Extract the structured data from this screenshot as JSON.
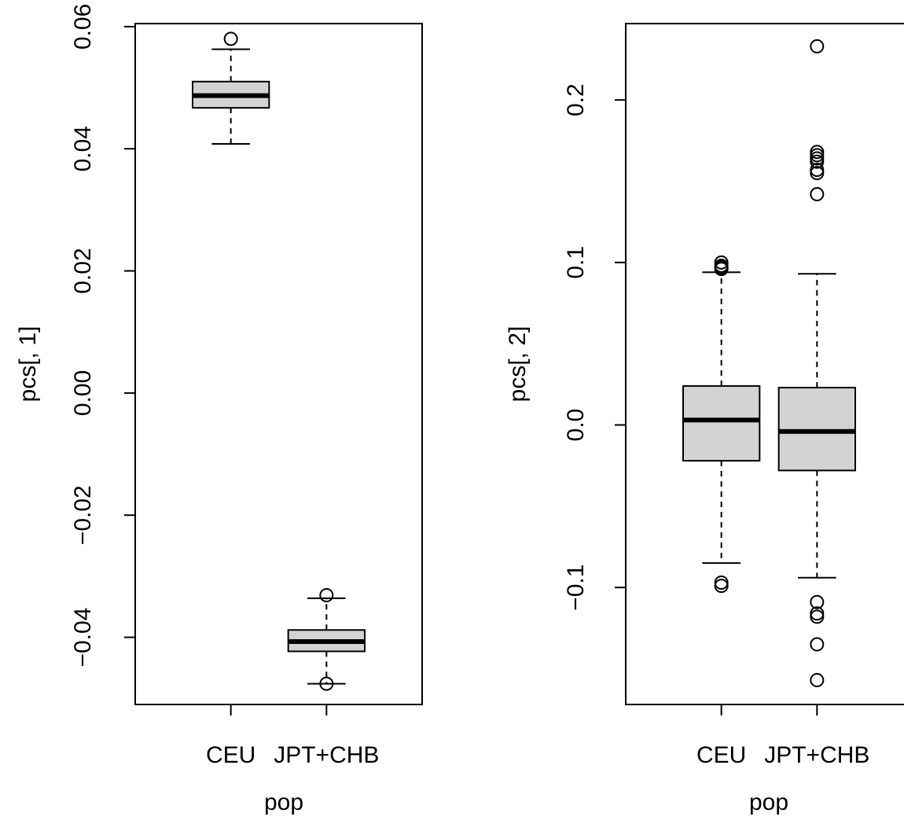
{
  "chart_data": [
    {
      "type": "boxplot",
      "xlabel": "pop",
      "ylabel": "pcs[, 1]",
      "ylim": [
        -0.051,
        0.0605
      ],
      "yticks": [
        -0.04,
        -0.02,
        0.0,
        0.02,
        0.04,
        0.06
      ],
      "ytick_labels": [
        "−0.04",
        "−0.02",
        "0.00",
        "0.02",
        "0.04",
        "0.06"
      ],
      "categories": [
        "CEU",
        "JPT+CHB"
      ],
      "boxes": [
        {
          "whisker_low": 0.0408,
          "q1": 0.0467,
          "median": 0.0487,
          "q3": 0.051,
          "whisker_high": 0.0563,
          "outliers": [
            0.058
          ]
        },
        {
          "whisker_low": -0.0476,
          "q1": -0.0423,
          "median": -0.0407,
          "q3": -0.0388,
          "whisker_high": -0.0336,
          "outliers": [
            -0.0331,
            -0.0476
          ]
        }
      ]
    },
    {
      "type": "boxplot",
      "xlabel": "pop",
      "ylabel": "pcs[, 2]",
      "ylim": [
        -0.172,
        0.247
      ],
      "yticks": [
        -0.1,
        0.0,
        0.1,
        0.2
      ],
      "ytick_labels": [
        "−0.1",
        "0.0",
        "0.1",
        "0.2"
      ],
      "categories": [
        "CEU",
        "JPT+CHB"
      ],
      "boxes": [
        {
          "whisker_low": -0.085,
          "q1": -0.022,
          "median": 0.003,
          "q3": 0.024,
          "whisker_high": 0.094,
          "outliers": [
            0.1,
            0.098,
            0.097,
            0.096,
            -0.097,
            -0.099
          ]
        },
        {
          "whisker_low": -0.094,
          "q1": -0.028,
          "median": -0.004,
          "q3": 0.023,
          "whisker_high": 0.093,
          "outliers": [
            0.233,
            0.168,
            0.166,
            0.164,
            0.162,
            0.157,
            0.155,
            0.142,
            -0.109,
            -0.116,
            -0.118,
            -0.135,
            -0.157
          ]
        }
      ]
    }
  ]
}
